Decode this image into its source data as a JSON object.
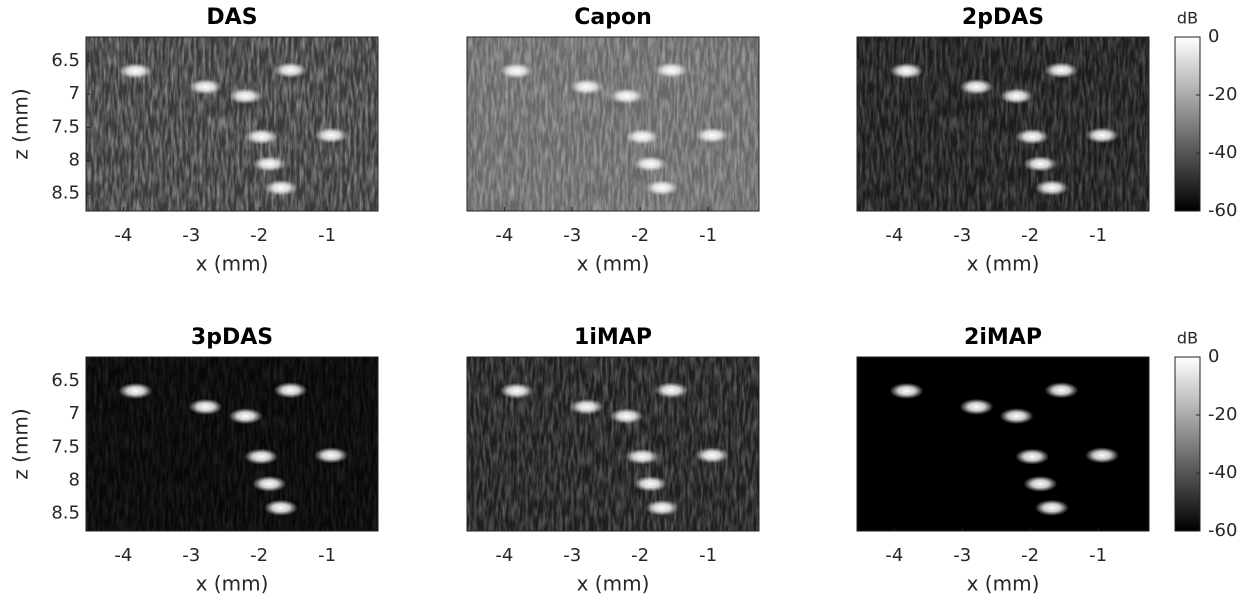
{
  "chart_data": [
    {
      "type": "image",
      "title": "DAS",
      "xlabel": "x (mm)",
      "ylabel": "z (mm)",
      "background": "#3a3a3a",
      "color": "#ffffff",
      "xlim": [
        -4.55,
        -0.25
      ],
      "ylim": [
        6.14,
        8.76
      ],
      "xticks": [
        -4,
        -3,
        -2,
        -1
      ],
      "yticks": [
        6.5,
        7,
        7.5,
        8,
        8.5
      ],
      "x": [
        -3.82,
        -2.79,
        -2.2,
        -1.54,
        -1.97,
        -0.94,
        -1.85,
        -1.68
      ],
      "y": [
        6.65,
        6.89,
        7.03,
        6.64,
        7.64,
        7.62,
        8.05,
        8.41
      ]
    },
    {
      "type": "image",
      "title": "Capon",
      "xlabel": "x (mm)",
      "background": "#686868",
      "color": "#ffffff",
      "xlim": [
        -4.55,
        -0.25
      ],
      "ylim": [
        6.14,
        8.76
      ],
      "xticks": [
        -4,
        -3,
        -2,
        -1
      ],
      "x": [
        -3.82,
        -2.79,
        -2.2,
        -1.54,
        -1.97,
        -0.94,
        -1.85,
        -1.68
      ],
      "y": [
        6.65,
        6.89,
        7.03,
        6.64,
        7.64,
        7.62,
        8.05,
        8.41
      ]
    },
    {
      "type": "image",
      "title": "2pDAS",
      "xlabel": "x (mm)",
      "background": "#1c1c1c",
      "color": "#ffffff",
      "xlim": [
        -4.55,
        -0.25
      ],
      "ylim": [
        6.14,
        8.76
      ],
      "xticks": [
        -4,
        -3,
        -2,
        -1
      ],
      "x": [
        -3.82,
        -2.79,
        -2.2,
        -1.54,
        -1.97,
        -0.94,
        -1.85,
        -1.68
      ],
      "y": [
        6.65,
        6.89,
        7.03,
        6.64,
        7.64,
        7.62,
        8.05,
        8.41
      ],
      "colorbar": {
        "label": "dB",
        "clim": [
          -60,
          0
        ],
        "ticks": [
          0,
          -20,
          -40,
          -60
        ]
      }
    },
    {
      "type": "image",
      "title": "3pDAS",
      "xlabel": "x (mm)",
      "ylabel": "z (mm)",
      "background": "#080808",
      "color": "#ffffff",
      "xlim": [
        -4.55,
        -0.25
      ],
      "ylim": [
        6.14,
        8.76
      ],
      "xticks": [
        -4,
        -3,
        -2,
        -1
      ],
      "yticks": [
        6.5,
        7,
        7.5,
        8,
        8.5
      ],
      "x": [
        -3.82,
        -2.79,
        -2.2,
        -1.54,
        -1.97,
        -0.94,
        -1.85,
        -1.68
      ],
      "y": [
        6.65,
        6.89,
        7.03,
        6.64,
        7.64,
        7.62,
        8.05,
        8.41
      ]
    },
    {
      "type": "image",
      "title": "1iMAP",
      "xlabel": "x (mm)",
      "background": "#1e1e1e",
      "color": "#ffffff",
      "xlim": [
        -4.55,
        -0.25
      ],
      "ylim": [
        6.14,
        8.76
      ],
      "xticks": [
        -4,
        -3,
        -2,
        -1
      ],
      "x": [
        -3.82,
        -2.79,
        -2.2,
        -1.54,
        -1.97,
        -0.94,
        -1.85,
        -1.68
      ],
      "y": [
        6.65,
        6.89,
        7.03,
        6.64,
        7.64,
        7.62,
        8.05,
        8.41
      ]
    },
    {
      "type": "image",
      "title": "2iMAP",
      "xlabel": "x (mm)",
      "background": "#000000",
      "color": "#ffffff",
      "xlim": [
        -4.55,
        -0.25
      ],
      "ylim": [
        6.14,
        8.76
      ],
      "xticks": [
        -4,
        -3,
        -2,
        -1
      ],
      "x": [
        -3.82,
        -2.79,
        -2.2,
        -1.54,
        -1.97,
        -0.94,
        -1.85,
        -1.68
      ],
      "y": [
        6.65,
        6.89,
        7.03,
        6.64,
        7.64,
        7.62,
        8.05,
        8.41
      ],
      "colorbar": {
        "label": "dB",
        "clim": [
          -60,
          0
        ],
        "ticks": [
          0,
          -20,
          -40,
          -60
        ]
      }
    }
  ]
}
